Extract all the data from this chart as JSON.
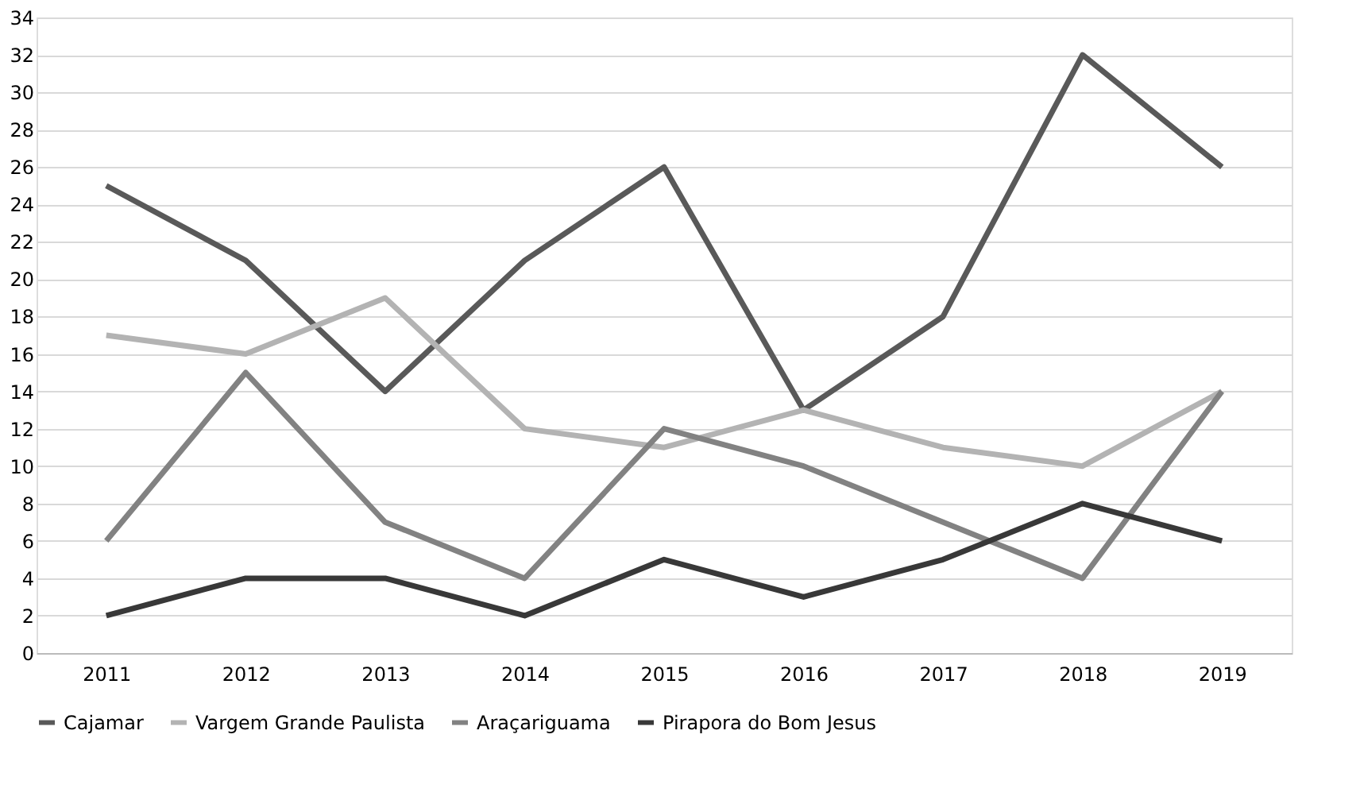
{
  "chart_data": {
    "type": "line",
    "categories": [
      "2011",
      "2012",
      "2013",
      "2014",
      "2015",
      "2016",
      "2017",
      "2018",
      "2019"
    ],
    "series": [
      {
        "name": "Cajamar",
        "color": "#595959",
        "values": [
          25,
          21,
          14,
          21,
          26,
          13,
          18,
          32,
          26
        ]
      },
      {
        "name": "Vargem Grande Paulista",
        "color": "#b3b3b3",
        "values": [
          17,
          16,
          19,
          12,
          11,
          13,
          11,
          10,
          14
        ]
      },
      {
        "name": "Araçariguama",
        "color": "#828282",
        "values": [
          6,
          15,
          7,
          4,
          12,
          10,
          7,
          4,
          14
        ]
      },
      {
        "name": "Pirapora do Bom Jesus",
        "color": "#383838",
        "values": [
          2,
          4,
          4,
          2,
          5,
          3,
          5,
          8,
          6
        ]
      }
    ],
    "ylim": [
      0,
      34
    ],
    "yticks": [
      0,
      2,
      4,
      6,
      8,
      10,
      12,
      14,
      16,
      18,
      20,
      22,
      24,
      26,
      28,
      30,
      32,
      34
    ],
    "grid": "y",
    "legend": "bottom",
    "marker": "none",
    "line_style": "solid"
  }
}
